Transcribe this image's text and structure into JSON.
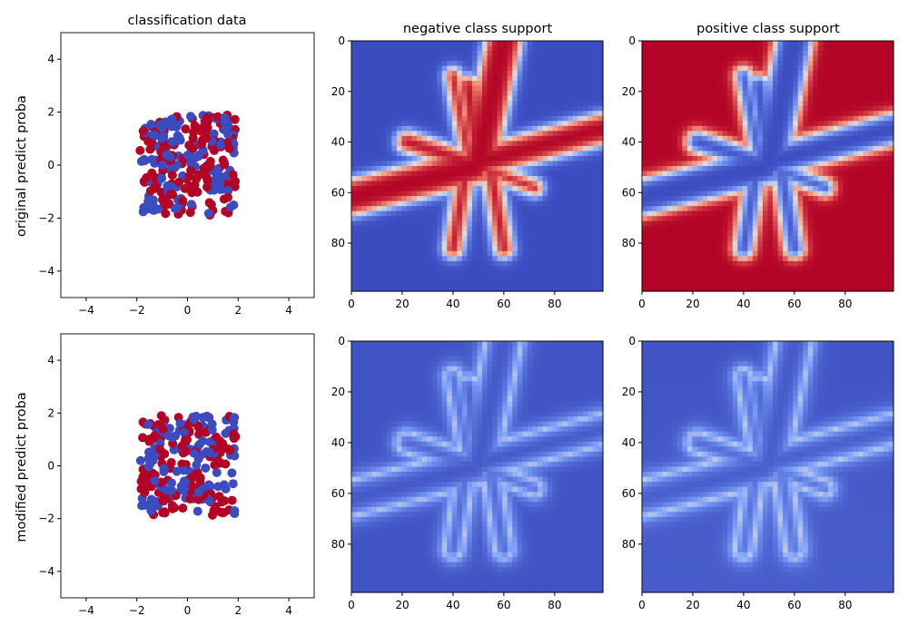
{
  "figure": {
    "col_titles": [
      "classification data",
      "negative class support",
      "positive class support"
    ],
    "row_labels": [
      "original predict proba",
      "modified predict proba"
    ]
  },
  "colors": {
    "positive": "#b40426",
    "negative": "#3b4cc0",
    "mid": "#dddddd"
  },
  "chart_data": [
    {
      "type": "scatter",
      "panel": "row1-col1",
      "title": "classification data",
      "ylabel": "original predict proba",
      "xlim": [
        -5,
        5
      ],
      "ylim": [
        -5,
        5
      ],
      "xticks": [
        -4,
        -2,
        0,
        2,
        4
      ],
      "yticks": [
        -4,
        -2,
        0,
        2,
        4
      ],
      "point_region": {
        "x": [
          -1.9,
          1.9
        ],
        "y": [
          -1.9,
          1.9
        ]
      },
      "class_colors": [
        "#3b4cc0",
        "#b40426"
      ],
      "grid": false
    },
    {
      "type": "heatmap",
      "panel": "row1-col2",
      "title": "negative class support",
      "xlim": [
        0,
        99
      ],
      "ylim": [
        99,
        0
      ],
      "xticks": [
        0,
        20,
        40,
        60,
        80
      ],
      "yticks": [
        0,
        20,
        40,
        60,
        80
      ],
      "colormap": "coolwarm",
      "variant": "neg",
      "modified": false
    },
    {
      "type": "heatmap",
      "panel": "row1-col3",
      "title": "positive class support",
      "xlim": [
        0,
        99
      ],
      "ylim": [
        99,
        0
      ],
      "xticks": [
        0,
        20,
        40,
        60,
        80
      ],
      "yticks": [
        0,
        20,
        40,
        60,
        80
      ],
      "colormap": "coolwarm",
      "variant": "pos",
      "modified": false
    },
    {
      "type": "scatter",
      "panel": "row2-col1",
      "ylabel": "modified predict proba",
      "xlim": [
        -5,
        5
      ],
      "ylim": [
        -5,
        5
      ],
      "xticks": [
        -4,
        -2,
        0,
        2,
        4
      ],
      "yticks": [
        -4,
        -2,
        0,
        2,
        4
      ],
      "point_region": {
        "x": [
          -1.9,
          1.9
        ],
        "y": [
          -1.9,
          1.9
        ]
      },
      "class_colors": [
        "#3b4cc0",
        "#b40426"
      ],
      "grid": false
    },
    {
      "type": "heatmap",
      "panel": "row2-col2",
      "xlim": [
        0,
        99
      ],
      "ylim": [
        99,
        0
      ],
      "xticks": [
        0,
        20,
        40,
        60,
        80
      ],
      "yticks": [
        0,
        20,
        40,
        60,
        80
      ],
      "colormap": "coolwarm",
      "variant": "neg",
      "modified": true
    },
    {
      "type": "heatmap",
      "panel": "row2-col3",
      "xlim": [
        0,
        99
      ],
      "ylim": [
        99,
        0
      ],
      "xticks": [
        0,
        20,
        40,
        60,
        80
      ],
      "yticks": [
        0,
        20,
        40,
        60,
        80
      ],
      "colormap": "coolwarm",
      "variant": "pos",
      "modified": true
    }
  ]
}
